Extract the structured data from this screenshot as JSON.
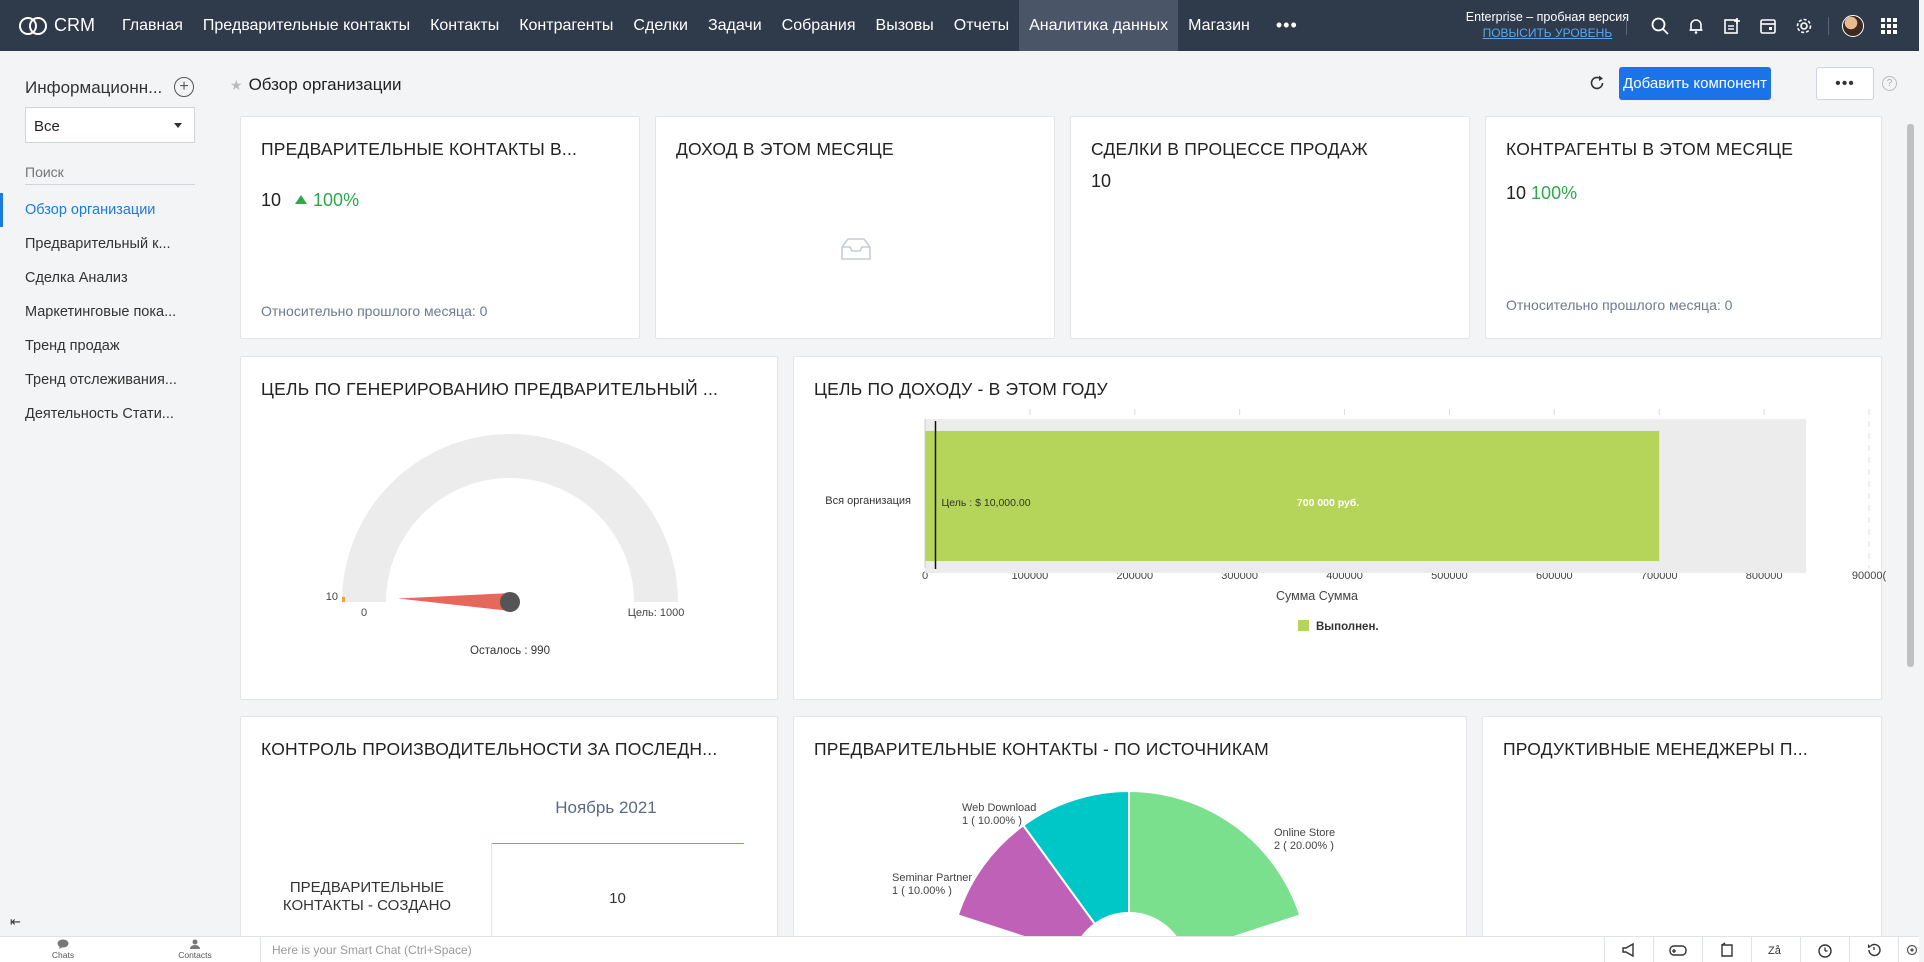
{
  "topbar": {
    "brand": "CRM",
    "nav": [
      {
        "label": "Главная",
        "active": false
      },
      {
        "label": "Предварительные контакты",
        "active": false
      },
      {
        "label": "Контакты",
        "active": false
      },
      {
        "label": "Контрагенты",
        "active": false
      },
      {
        "label": "Сделки",
        "active": false
      },
      {
        "label": "Задачи",
        "active": false
      },
      {
        "label": "Собрания",
        "active": false
      },
      {
        "label": "Вызовы",
        "active": false
      },
      {
        "label": "Отчеты",
        "active": false
      },
      {
        "label": "Аналитика данных",
        "active": true
      },
      {
        "label": "Магазин",
        "active": false
      }
    ],
    "more": "•••",
    "edition": "Enterprise – пробная версия",
    "upgrade": "ПОВЫСИТЬ УРОВЕНЬ",
    "colors": {
      "bg": "#2f3a4b",
      "active": "#4a5568",
      "link": "#5aa6f0"
    }
  },
  "sidebar": {
    "heading": "Информационн...",
    "select_value": "Все",
    "search_placeholder": "Поиск",
    "items": [
      {
        "label": "Обзор организации",
        "active": true
      },
      {
        "label": "Предварительный к...",
        "active": false
      },
      {
        "label": "Сделка Анализ",
        "active": false
      },
      {
        "label": "Маркетинговые пока...",
        "active": false
      },
      {
        "label": "Тренд продаж",
        "active": false
      },
      {
        "label": "Тренд отслеживания...",
        "active": false
      },
      {
        "label": "Деятельность Стати...",
        "active": false
      }
    ],
    "collapse_glyph": "⇤"
  },
  "header": {
    "title": "Обзор организации",
    "add_button": "Добавить компонент",
    "more_button": "•••",
    "help": "?"
  },
  "cards": {
    "leads": {
      "title": "ПРЕДВАРИТЕЛЬНЫЕ КОНТАКТЫ В...",
      "value": "10",
      "change": "100%",
      "compare": "Относительно прошлого месяца: 0"
    },
    "revenue": {
      "title": "ДОХОД В ЭТОМ МЕСЯЦЕ"
    },
    "deals": {
      "title": "СДЕЛКИ В ПРОЦЕССЕ ПРОДАЖ",
      "value": "10"
    },
    "accounts": {
      "title": "КОНТРАГЕНТЫ В ЭТОМ МЕСЯЦЕ",
      "value": "10",
      "change": "100%",
      "compare": "Относительно прошлого месяца: 0"
    },
    "lead_goal": {
      "title": "ЦЕЛЬ ПО ГЕНЕРИРОВАНИЮ ПРЕДВАРИТЕЛЬНЫЙ ..."
    },
    "revenue_goal": {
      "title": "ЦЕЛЬ ПО ДОХОДУ - В ЭТОМ ГОДУ"
    },
    "performance": {
      "title": "КОНТРОЛЬ ПРОИЗВОДИТЕЛЬНОСТИ ЗА ПОСЛЕДН...",
      "month": "Ноябрь 2021",
      "row_label_1": "ПРЕДВАРИТЕЛЬНЫЕ",
      "row_label_2": "КОНТАКТЫ - СОЗДАНО",
      "row_value": "10"
    },
    "lead_sources": {
      "title": "ПРЕДВАРИТЕЛЬНЫЕ КОНТАКТЫ - ПО ИСТОЧНИКАМ"
    },
    "top_managers": {
      "title": "ПРОДУКТИВНЫЕ МЕНЕДЖЕРЫ П..."
    }
  },
  "chart_data": [
    {
      "type": "gauge",
      "value": 10,
      "min": 0,
      "max": 1000,
      "value_label": "10",
      "min_label": "0",
      "target_label": "Цель: 1000",
      "remaining_label": "Осталось : 990",
      "colors": {
        "track": "#ececec",
        "needle": "#e8675c",
        "hub": "#555555",
        "fill": "#f5a23c"
      }
    },
    {
      "type": "bar",
      "orientation": "horizontal",
      "categories": [
        "Вся организация"
      ],
      "series": [
        {
          "name": "Выполнен.",
          "values": [
            700000
          ],
          "color": "#b5d55a"
        }
      ],
      "data_label": "700 000 руб.",
      "target": 10000,
      "target_label": "Цель : $ 10,000.00",
      "xlim": [
        0,
        900000
      ],
      "xticks": [
        "0",
        "100000",
        "200000",
        "300000",
        "400000",
        "500000",
        "600000",
        "700000",
        "800000",
        "90000("
      ],
      "xlabel": "Сумма Сумма",
      "legend": "bottom-center"
    },
    {
      "type": "pie",
      "style": "donut",
      "slices": [
        {
          "label": "Online Store",
          "value": 2,
          "detail": "2 ( 20.00% )",
          "color": "#7be08e"
        },
        {
          "label": "Web Download",
          "value": 1,
          "detail": "1 ( 10.00% )",
          "color": "#00c7c7"
        },
        {
          "label": "Seminar Partner",
          "value": 1,
          "detail": "1 ( 10.00% )",
          "color": "#c061b8"
        }
      ]
    }
  ],
  "bottombar": {
    "chats": "Chats",
    "contacts": "Contacts",
    "smartchat_placeholder": "Here is your Smart Chat (Ctrl+Space)"
  }
}
